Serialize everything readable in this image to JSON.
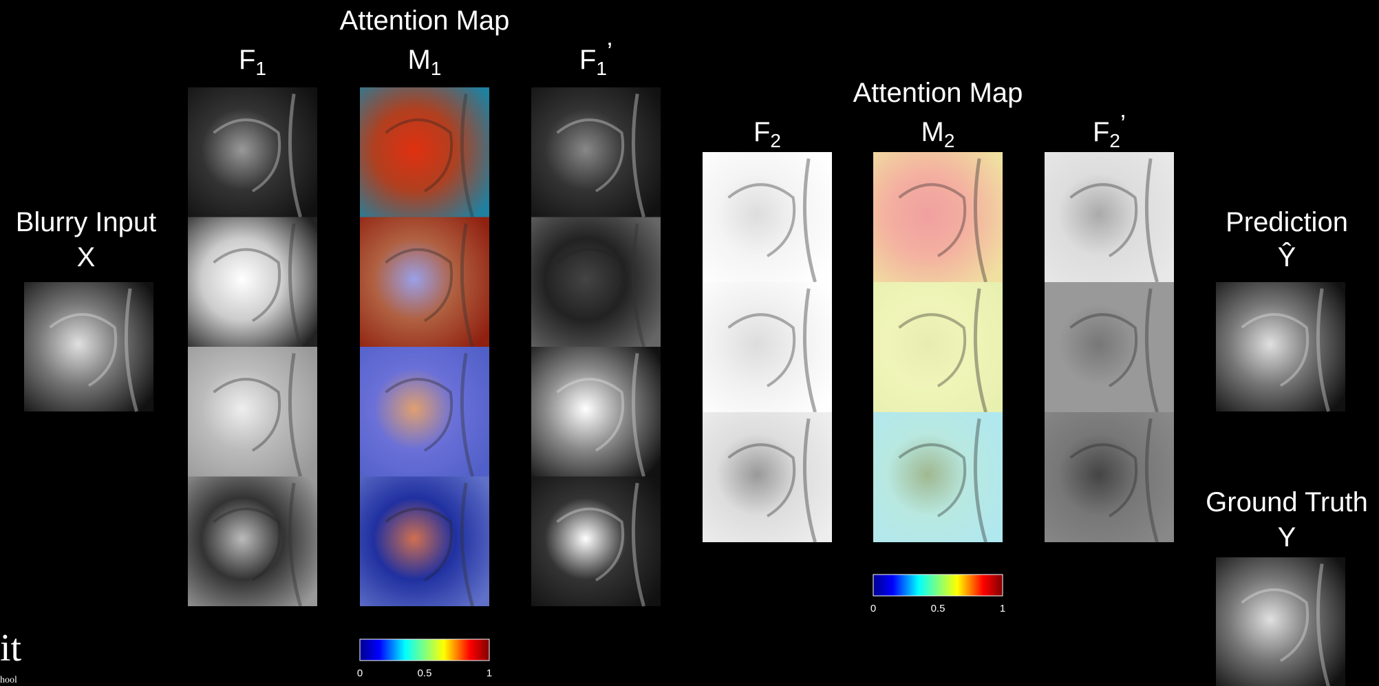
{
  "inputs": [
    {
      "title": "Blurry Input",
      "symbol": "X"
    },
    {
      "title": "Prediction",
      "symbol": "Ŷ"
    },
    {
      "title": "Ground Truth",
      "symbol": "Y"
    }
  ],
  "columns": [
    {
      "title": null,
      "main": "F",
      "sub": "1",
      "prime": null
    },
    {
      "title": "Attention Map",
      "main": "M",
      "sub": "1",
      "prime": null
    },
    {
      "title": null,
      "main": "F",
      "sub": "1",
      "prime": "’"
    },
    {
      "title": null,
      "main": "F",
      "sub": "2",
      "prime": null
    },
    {
      "title": "Attention Map",
      "main": "M",
      "sub": "2",
      "prime": null
    },
    {
      "title": null,
      "main": "F",
      "sub": "2",
      "prime": "’"
    }
  ],
  "colorbars": [
    {
      "ticks": [
        0,
        0.5,
        1
      ]
    },
    {
      "ticks": [
        0,
        0.5,
        1
      ]
    }
  ],
  "logo": {
    "mark": "it",
    "caption": "hool"
  }
}
